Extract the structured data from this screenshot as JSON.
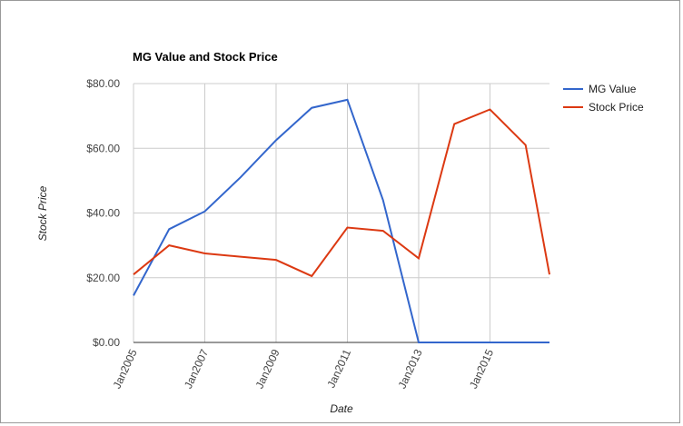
{
  "chart_data": {
    "type": "line",
    "title": "MG Value and Stock Price",
    "x_label": "Date",
    "y_label": "Stock Price",
    "x": [
      2005,
      2006,
      2007,
      2008,
      2009,
      2010,
      2011,
      2012,
      2013,
      2014,
      2015,
      2016,
      2016.67
    ],
    "xlim": [
      2005,
      2016.67
    ],
    "xticks": [
      {
        "value": 2005,
        "label": "Jan2005"
      },
      {
        "value": 2007,
        "label": "Jan2007"
      },
      {
        "value": 2009,
        "label": "Jan2009"
      },
      {
        "value": 2011,
        "label": "Jan2011"
      },
      {
        "value": 2013,
        "label": "Jan2013"
      },
      {
        "value": 2015,
        "label": "Jan2015"
      }
    ],
    "ylim": [
      0,
      80
    ],
    "yticks": [
      {
        "value": 0,
        "label": "$0.00"
      },
      {
        "value": 20,
        "label": "$20.00"
      },
      {
        "value": 40,
        "label": "$40.00"
      },
      {
        "value": 60,
        "label": "$60.00"
      },
      {
        "value": 80,
        "label": "$80.00"
      }
    ],
    "grid": true,
    "legend": "right",
    "series": [
      {
        "name": "MG Value",
        "color": "#3366cc",
        "values": [
          14.5,
          35,
          40.5,
          51,
          62.5,
          72.5,
          75,
          44,
          0,
          0,
          0,
          0,
          0
        ]
      },
      {
        "name": "Stock Price",
        "color": "#dc3912",
        "values": [
          21,
          30,
          27.5,
          26.5,
          25.5,
          20.5,
          35.5,
          34.5,
          26,
          67.5,
          72,
          61,
          21
        ]
      }
    ]
  }
}
